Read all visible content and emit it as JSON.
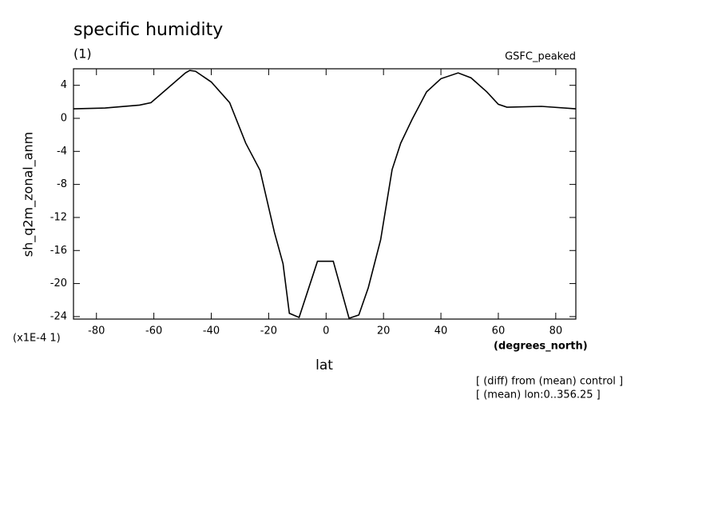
{
  "chart_data": {
    "type": "line",
    "title": "specific humidity",
    "subtitle": "(1)",
    "annotation_top_right": "GSFC_peaked",
    "y_label": "sh_q2m_zonal_anm",
    "y_scale_label": "(x1E-4 1)",
    "x_label": "lat",
    "x_unit_label": "(degrees_north)",
    "notes": [
      "[ (diff) from (mean) control ]",
      "[ (mean) lon:0..356.25 ]"
    ],
    "x": [
      -88,
      -77,
      -65,
      -61,
      -57,
      -49,
      -47.5,
      -45.5,
      -40,
      -33.6,
      -28,
      -23,
      -18,
      -15,
      -12.8,
      -9.4,
      -3,
      2.5,
      8,
      11.4,
      14.7,
      19,
      23,
      26,
      30,
      35,
      40,
      46,
      50.5,
      56,
      60,
      63,
      75,
      87
    ],
    "series": [
      {
        "name": "sh_q2m_zonal_anm",
        "color": "#000000",
        "values": [
          1.15,
          1.25,
          1.6,
          1.9,
          3.1,
          5.5,
          5.8,
          5.7,
          4.4,
          1.9,
          -3.0,
          -6.3,
          -13.8,
          -17.6,
          -23.6,
          -24.1,
          -17.3,
          -17.3,
          -24.2,
          -23.8,
          -20.5,
          -14.7,
          -6.2,
          -3.0,
          -0.1,
          3.2,
          4.8,
          5.5,
          4.9,
          3.2,
          1.7,
          1.35,
          1.45,
          1.15
        ]
      }
    ],
    "xlim": [
      -88,
      87
    ],
    "ylim": [
      -24.3,
      6
    ],
    "xticks": [
      -80,
      -60,
      -40,
      -20,
      0,
      20,
      40,
      60,
      80
    ],
    "yticks": [
      -24,
      -20,
      -16,
      -12,
      -8,
      -4,
      0,
      4
    ]
  }
}
